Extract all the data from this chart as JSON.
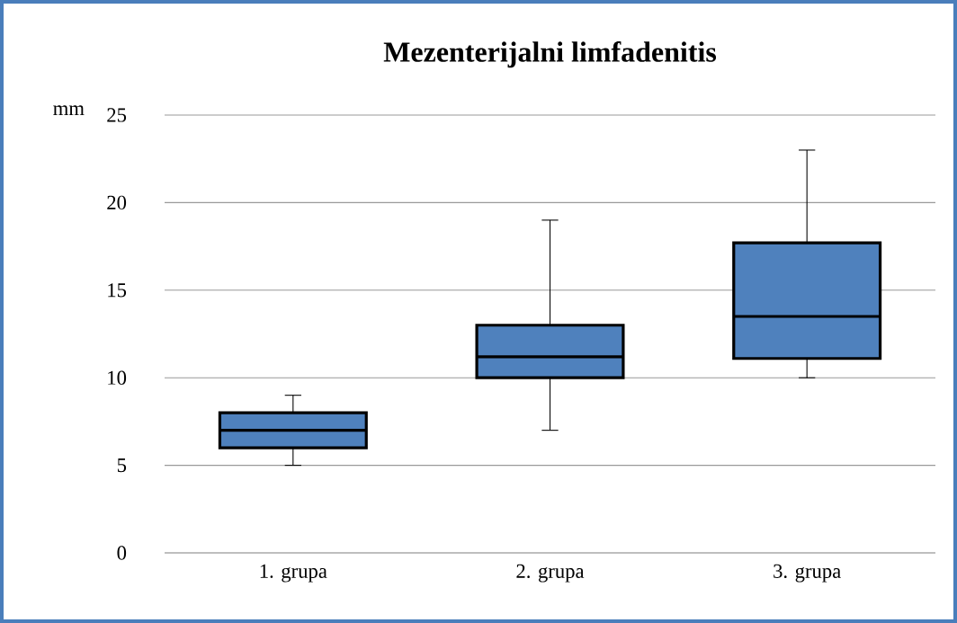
{
  "chart_data": {
    "type": "box",
    "title": "Mezenterijalni limfadenitis",
    "ylabel": "mm",
    "categories": [
      "1. grupa",
      "2. grupa",
      "3. grupa"
    ],
    "boxes": [
      {
        "low": 5,
        "q1": 6,
        "median": 7,
        "q3": 8,
        "high": 9
      },
      {
        "low": 7,
        "q1": 10,
        "median": 11.2,
        "q3": 13,
        "high": 19
      },
      {
        "low": 10,
        "q1": 11.1,
        "median": 13.5,
        "q3": 17.7,
        "high": 23
      }
    ],
    "color": "#4f81bd",
    "ylim": [
      0,
      25
    ],
    "yticks": [
      0,
      5,
      10,
      15,
      20,
      25
    ],
    "grid": "y"
  }
}
